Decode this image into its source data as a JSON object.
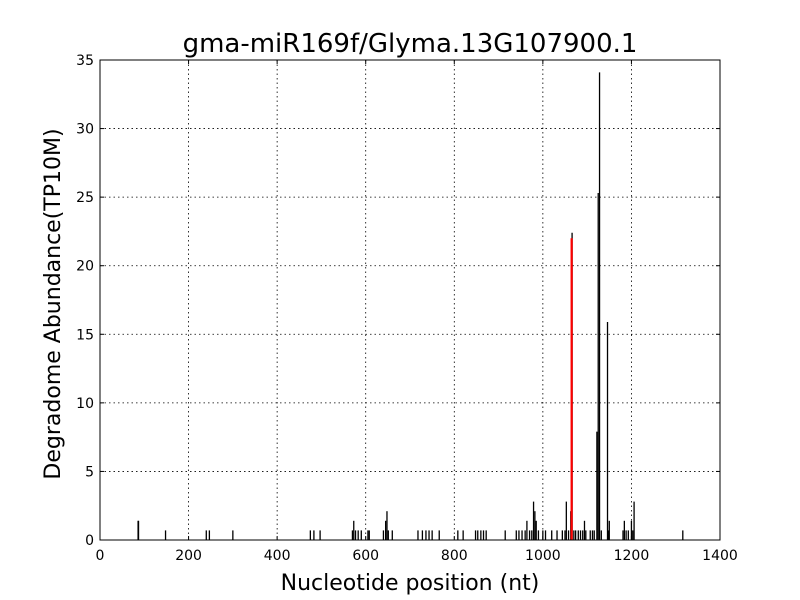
{
  "chart_data": {
    "type": "bar",
    "title": "gma-miR169f/Glyma.13G107900.1",
    "xlabel": "Nucleotide position (nt)",
    "ylabel": "Degradome Abundance(TP10M)",
    "xlim": [
      0,
      1400
    ],
    "ylim": [
      0,
      35
    ],
    "xticks": [
      "0",
      "200",
      "400",
      "600",
      "800",
      "1000",
      "1200",
      "1400"
    ],
    "yticks": [
      "0",
      "5",
      "10",
      "15",
      "20",
      "25",
      "30",
      "35"
    ],
    "grid": true,
    "series": [
      {
        "color": "#000000",
        "points": [
          {
            "x": 86,
            "y": 1.4
          },
          {
            "x": 87,
            "y": 1.4
          },
          {
            "x": 148,
            "y": 0.7
          },
          {
            "x": 240,
            "y": 0.7
          },
          {
            "x": 247,
            "y": 0.7
          },
          {
            "x": 300,
            "y": 0.7
          },
          {
            "x": 475,
            "y": 0.7
          },
          {
            "x": 483,
            "y": 0.7
          },
          {
            "x": 497,
            "y": 0.7
          },
          {
            "x": 570,
            "y": 0.7
          },
          {
            "x": 573,
            "y": 1.4
          },
          {
            "x": 577,
            "y": 0.7
          },
          {
            "x": 583,
            "y": 0.7
          },
          {
            "x": 590,
            "y": 0.7
          },
          {
            "x": 605,
            "y": 0.7
          },
          {
            "x": 608,
            "y": 0.7
          },
          {
            "x": 640,
            "y": 0.7
          },
          {
            "x": 645,
            "y": 1.4
          },
          {
            "x": 648,
            "y": 2.1
          },
          {
            "x": 651,
            "y": 0.7
          },
          {
            "x": 660,
            "y": 0.7
          },
          {
            "x": 718,
            "y": 0.7
          },
          {
            "x": 728,
            "y": 0.7
          },
          {
            "x": 736,
            "y": 0.7
          },
          {
            "x": 743,
            "y": 0.7
          },
          {
            "x": 750,
            "y": 0.7
          },
          {
            "x": 766,
            "y": 0.7
          },
          {
            "x": 808,
            "y": 0.7
          },
          {
            "x": 820,
            "y": 0.7
          },
          {
            "x": 848,
            "y": 0.7
          },
          {
            "x": 853,
            "y": 0.7
          },
          {
            "x": 860,
            "y": 0.7
          },
          {
            "x": 866,
            "y": 0.7
          },
          {
            "x": 872,
            "y": 0.7
          },
          {
            "x": 915,
            "y": 0.7
          },
          {
            "x": 940,
            "y": 0.7
          },
          {
            "x": 946,
            "y": 0.7
          },
          {
            "x": 953,
            "y": 0.7
          },
          {
            "x": 960,
            "y": 0.7
          },
          {
            "x": 964,
            "y": 1.4
          },
          {
            "x": 970,
            "y": 0.7
          },
          {
            "x": 975,
            "y": 0.7
          },
          {
            "x": 979,
            "y": 2.8
          },
          {
            "x": 982,
            "y": 2.1
          },
          {
            "x": 985,
            "y": 1.4
          },
          {
            "x": 990,
            "y": 0.7
          },
          {
            "x": 1000,
            "y": 0.7
          },
          {
            "x": 1006,
            "y": 0.7
          },
          {
            "x": 1020,
            "y": 0.7
          },
          {
            "x": 1032,
            "y": 0.7
          },
          {
            "x": 1044,
            "y": 0.7
          },
          {
            "x": 1050,
            "y": 0.7
          },
          {
            "x": 1053,
            "y": 2.8
          },
          {
            "x": 1058,
            "y": 0.7
          },
          {
            "x": 1063,
            "y": 2.1
          },
          {
            "x": 1066,
            "y": 22.4
          },
          {
            "x": 1070,
            "y": 0.7
          },
          {
            "x": 1074,
            "y": 0.7
          },
          {
            "x": 1080,
            "y": 0.7
          },
          {
            "x": 1085,
            "y": 0.7
          },
          {
            "x": 1090,
            "y": 0.7
          },
          {
            "x": 1094,
            "y": 1.4
          },
          {
            "x": 1097,
            "y": 0.7
          },
          {
            "x": 1107,
            "y": 0.7
          },
          {
            "x": 1112,
            "y": 0.7
          },
          {
            "x": 1116,
            "y": 0.7
          },
          {
            "x": 1122,
            "y": 7.9
          },
          {
            "x": 1125,
            "y": 25.3
          },
          {
            "x": 1128,
            "y": 34.1
          },
          {
            "x": 1132,
            "y": 0.7
          },
          {
            "x": 1146,
            "y": 15.9
          },
          {
            "x": 1148,
            "y": 0.7
          },
          {
            "x": 1150,
            "y": 1.4
          },
          {
            "x": 1181,
            "y": 0.7
          },
          {
            "x": 1184,
            "y": 1.4
          },
          {
            "x": 1188,
            "y": 0.7
          },
          {
            "x": 1193,
            "y": 0.7
          },
          {
            "x": 1200,
            "y": 1.4
          },
          {
            "x": 1203,
            "y": 0.7
          },
          {
            "x": 1206,
            "y": 2.8
          },
          {
            "x": 1316,
            "y": 0.7
          }
        ]
      },
      {
        "color": "#ff0000",
        "points": [
          {
            "x": 1065,
            "y": 22.0
          }
        ]
      }
    ]
  }
}
